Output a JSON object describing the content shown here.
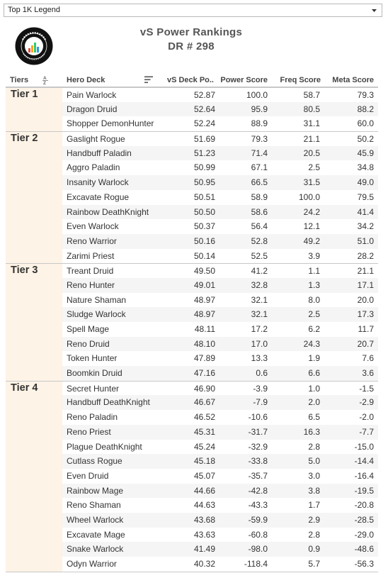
{
  "filter": {
    "selected": "Top 1K Legend",
    "icon": "chevron-down-icon"
  },
  "logo": {
    "text": "VICIOUS SYNDICATE DATA REAPER REPORT",
    "icon": "data-reaper-logo"
  },
  "header": {
    "title": "vS Power Rankings",
    "subtitle": "DR # 298"
  },
  "colors": {
    "tier_bg": "#fdf3e6",
    "zebra": "#f5f5f5",
    "rule": "#c8c8c8"
  },
  "chart_data": {
    "type": "table",
    "columns": [
      "Tiers",
      "Hero Deck",
      "vS Deck Po..",
      "Power Score",
      "Freq Score",
      "Meta Score"
    ],
    "sort": {
      "tiers": "ascending",
      "hero_deck": "sort-icon"
    },
    "rows": [
      {
        "tier": "Tier 1",
        "deck": "Pain Warlock",
        "vs": "52.87",
        "power": "100.0",
        "freq": "58.7",
        "meta": "79.3"
      },
      {
        "tier": "Tier 1",
        "deck": "Dragon Druid",
        "vs": "52.64",
        "power": "95.9",
        "freq": "80.5",
        "meta": "88.2"
      },
      {
        "tier": "Tier 1",
        "deck": "Shopper DemonHunter",
        "vs": "52.24",
        "power": "88.9",
        "freq": "31.1",
        "meta": "60.0"
      },
      {
        "tier": "Tier 2",
        "deck": "Gaslight Rogue",
        "vs": "51.69",
        "power": "79.3",
        "freq": "21.1",
        "meta": "50.2"
      },
      {
        "tier": "Tier 2",
        "deck": "Handbuff Paladin",
        "vs": "51.23",
        "power": "71.4",
        "freq": "20.5",
        "meta": "45.9"
      },
      {
        "tier": "Tier 2",
        "deck": "Aggro Paladin",
        "vs": "50.99",
        "power": "67.1",
        "freq": "2.5",
        "meta": "34.8"
      },
      {
        "tier": "Tier 2",
        "deck": "Insanity Warlock",
        "vs": "50.95",
        "power": "66.5",
        "freq": "31.5",
        "meta": "49.0"
      },
      {
        "tier": "Tier 2",
        "deck": "Excavate Rogue",
        "vs": "50.51",
        "power": "58.9",
        "freq": "100.0",
        "meta": "79.5"
      },
      {
        "tier": "Tier 2",
        "deck": "Rainbow DeathKnight",
        "vs": "50.50",
        "power": "58.6",
        "freq": "24.2",
        "meta": "41.4"
      },
      {
        "tier": "Tier 2",
        "deck": "Even Warlock",
        "vs": "50.37",
        "power": "56.4",
        "freq": "12.1",
        "meta": "34.2"
      },
      {
        "tier": "Tier 2",
        "deck": "Reno Warrior",
        "vs": "50.16",
        "power": "52.8",
        "freq": "49.2",
        "meta": "51.0"
      },
      {
        "tier": "Tier 2",
        "deck": "Zarimi Priest",
        "vs": "50.14",
        "power": "52.5",
        "freq": "3.9",
        "meta": "28.2"
      },
      {
        "tier": "Tier 3",
        "deck": "Treant Druid",
        "vs": "49.50",
        "power": "41.2",
        "freq": "1.1",
        "meta": "21.1"
      },
      {
        "tier": "Tier 3",
        "deck": "Reno Hunter",
        "vs": "49.01",
        "power": "32.8",
        "freq": "1.3",
        "meta": "17.1"
      },
      {
        "tier": "Tier 3",
        "deck": "Nature Shaman",
        "vs": "48.97",
        "power": "32.1",
        "freq": "8.0",
        "meta": "20.0"
      },
      {
        "tier": "Tier 3",
        "deck": "Sludge Warlock",
        "vs": "48.97",
        "power": "32.1",
        "freq": "2.5",
        "meta": "17.3"
      },
      {
        "tier": "Tier 3",
        "deck": "Spell Mage",
        "vs": "48.11",
        "power": "17.2",
        "freq": "6.2",
        "meta": "11.7"
      },
      {
        "tier": "Tier 3",
        "deck": "Reno Druid",
        "vs": "48.10",
        "power": "17.0",
        "freq": "24.3",
        "meta": "20.7"
      },
      {
        "tier": "Tier 3",
        "deck": "Token Hunter",
        "vs": "47.89",
        "power": "13.3",
        "freq": "1.9",
        "meta": "7.6"
      },
      {
        "tier": "Tier 3",
        "deck": "Boomkin Druid",
        "vs": "47.16",
        "power": "0.6",
        "freq": "6.6",
        "meta": "3.6"
      },
      {
        "tier": "Tier 4",
        "deck": "Secret Hunter",
        "vs": "46.90",
        "power": "-3.9",
        "freq": "1.0",
        "meta": "-1.5"
      },
      {
        "tier": "Tier 4",
        "deck": "Handbuff DeathKnight",
        "vs": "46.67",
        "power": "-7.9",
        "freq": "2.0",
        "meta": "-2.9"
      },
      {
        "tier": "Tier 4",
        "deck": "Reno Paladin",
        "vs": "46.52",
        "power": "-10.6",
        "freq": "6.5",
        "meta": "-2.0"
      },
      {
        "tier": "Tier 4",
        "deck": "Reno Priest",
        "vs": "45.31",
        "power": "-31.7",
        "freq": "16.3",
        "meta": "-7.7"
      },
      {
        "tier": "Tier 4",
        "deck": "Plague DeathKnight",
        "vs": "45.24",
        "power": "-32.9",
        "freq": "2.8",
        "meta": "-15.0"
      },
      {
        "tier": "Tier 4",
        "deck": "Cutlass Rogue",
        "vs": "45.18",
        "power": "-33.8",
        "freq": "5.0",
        "meta": "-14.4"
      },
      {
        "tier": "Tier 4",
        "deck": "Even Druid",
        "vs": "45.07",
        "power": "-35.7",
        "freq": "3.0",
        "meta": "-16.4"
      },
      {
        "tier": "Tier 4",
        "deck": "Rainbow Mage",
        "vs": "44.66",
        "power": "-42.8",
        "freq": "3.8",
        "meta": "-19.5"
      },
      {
        "tier": "Tier 4",
        "deck": "Reno Shaman",
        "vs": "44.63",
        "power": "-43.3",
        "freq": "1.7",
        "meta": "-20.8"
      },
      {
        "tier": "Tier 4",
        "deck": "Wheel Warlock",
        "vs": "43.68",
        "power": "-59.9",
        "freq": "2.9",
        "meta": "-28.5"
      },
      {
        "tier": "Tier 4",
        "deck": "Excavate Mage",
        "vs": "43.63",
        "power": "-60.8",
        "freq": "2.8",
        "meta": "-29.0"
      },
      {
        "tier": "Tier 4",
        "deck": "Snake Warlock",
        "vs": "41.49",
        "power": "-98.0",
        "freq": "0.9",
        "meta": "-48.6"
      },
      {
        "tier": "Tier 4",
        "deck": "Odyn Warrior",
        "vs": "40.32",
        "power": "-118.4",
        "freq": "5.7",
        "meta": "-56.3"
      }
    ]
  }
}
